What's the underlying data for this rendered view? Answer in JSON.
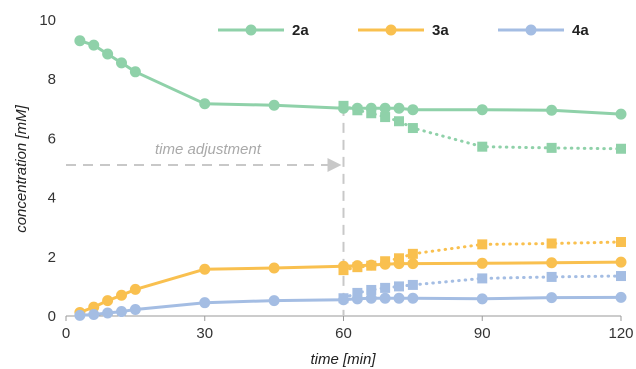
{
  "chart_data": {
    "type": "line",
    "xlabel": "time [min]",
    "ylabel": "concentration [mM]",
    "xlim": [
      0,
      120
    ],
    "ylim": [
      0,
      10
    ],
    "xticks": [
      0,
      30,
      60,
      90,
      120
    ],
    "yticks": [
      0,
      2,
      4,
      6,
      8,
      10
    ],
    "grid": false,
    "legend_position": "top",
    "series": [
      {
        "name": "2a",
        "color": "#8fd1a9",
        "marker": "circle",
        "style": "solid",
        "x": [
          3,
          6,
          9,
          12,
          15,
          30,
          45,
          60,
          63,
          66,
          69,
          72,
          75,
          90,
          105,
          120
        ],
        "y": [
          9.3,
          9.15,
          8.85,
          8.55,
          8.25,
          7.17,
          7.12,
          7.02,
          7.02,
          7.02,
          7.02,
          7.02,
          6.97,
          6.97,
          6.95,
          6.82
        ]
      },
      {
        "name": "3a",
        "color": "#f9c04f",
        "marker": "circle",
        "style": "solid",
        "x": [
          3,
          6,
          9,
          12,
          15,
          30,
          45,
          60,
          63,
          66,
          69,
          72,
          75,
          90,
          105,
          120
        ],
        "y": [
          0.12,
          0.3,
          0.52,
          0.7,
          0.9,
          1.58,
          1.62,
          1.68,
          1.7,
          1.72,
          1.75,
          1.77,
          1.77,
          1.78,
          1.8,
          1.82
        ]
      },
      {
        "name": "4a",
        "color": "#a4bde3",
        "marker": "circle",
        "style": "solid",
        "x": [
          3,
          6,
          9,
          12,
          15,
          30,
          45,
          60,
          63,
          66,
          69,
          72,
          75,
          90,
          105,
          120
        ],
        "y": [
          0.02,
          0.05,
          0.1,
          0.15,
          0.22,
          0.45,
          0.52,
          0.55,
          0.58,
          0.6,
          0.6,
          0.6,
          0.6,
          0.58,
          0.62,
          0.63
        ]
      },
      {
        "color": "#8fd1a9",
        "marker": "square",
        "style": "dotted",
        "x": [
          60,
          63,
          66,
          69,
          72,
          75,
          90,
          105,
          120
        ],
        "y": [
          7.1,
          6.95,
          6.85,
          6.72,
          6.58,
          6.35,
          5.72,
          5.68,
          5.65
        ]
      },
      {
        "color": "#f9c04f",
        "marker": "square",
        "style": "dotted",
        "x": [
          60,
          63,
          66,
          69,
          72,
          75,
          90,
          105,
          120
        ],
        "y": [
          1.55,
          1.65,
          1.7,
          1.85,
          1.95,
          2.1,
          2.42,
          2.45,
          2.5
        ]
      },
      {
        "color": "#a4bde3",
        "marker": "square",
        "style": "dotted",
        "x": [
          60,
          63,
          66,
          69,
          72,
          75,
          90,
          105,
          120
        ],
        "y": [
          0.6,
          0.78,
          0.88,
          0.95,
          1.0,
          1.05,
          1.27,
          1.32,
          1.35
        ]
      }
    ],
    "legend": [
      {
        "name": "2a",
        "color": "#8fd1a9"
      },
      {
        "name": "3a",
        "color": "#f9c04f"
      },
      {
        "name": "4a",
        "color": "#a4bde3"
      }
    ],
    "annotation": {
      "text": "time adjustment",
      "color": "#c8c8c8",
      "arrow_from": {
        "x": 0,
        "y": 5.1
      },
      "arrow_to": {
        "x": 60,
        "y": 5.1
      },
      "vertical_at_x": 60
    }
  }
}
